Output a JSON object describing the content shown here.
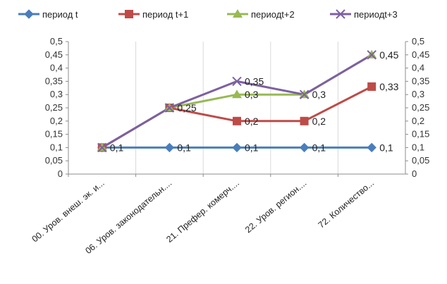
{
  "chart_data": {
    "type": "line",
    "title": "",
    "xlabel": "",
    "ylabel": "",
    "categories": [
      "00. Уров. внеш. эк. и...",
      "06. Уров. законодательн....",
      "21. Префер. комерч....",
      "22. Уров. регион....",
      "72. Количество..."
    ],
    "series": [
      {
        "name": "период t",
        "values": [
          0.1,
          0.1,
          0.1,
          0.1,
          0.1
        ],
        "color": "#4a7ebb",
        "marker": "diamond",
        "labels": [
          "0,1",
          "0,1",
          "0,1",
          "0,1",
          "0,1"
        ]
      },
      {
        "name": "период t+1",
        "values": [
          0.1,
          0.25,
          0.2,
          0.2,
          0.33
        ],
        "color": "#be4b48",
        "marker": "square",
        "labels": [
          "",
          "",
          "0,2",
          "0,2",
          "0,33"
        ]
      },
      {
        "name": "периодt+2",
        "values": [
          0.1,
          0.25,
          0.3,
          0.3,
          0.45
        ],
        "color": "#98b954",
        "marker": "triangle",
        "labels": [
          "",
          "",
          "0,3",
          "",
          ""
        ]
      },
      {
        "name": "периодt+3",
        "values": [
          0.1,
          0.25,
          0.35,
          0.3,
          0.45
        ],
        "color": "#7d60a0",
        "marker": "x",
        "labels": [
          "",
          "0,25",
          "0,35",
          "0,3",
          "0,45"
        ]
      }
    ],
    "ylim": [
      0,
      0.5
    ],
    "yticks": [
      "0",
      "0,05",
      "0,1",
      "0,15",
      "0,2",
      "0,25",
      "0,3",
      "0,35",
      "0,4",
      "0,45",
      "0,5"
    ],
    "secondary_yticks": [
      "0",
      "0,05",
      "0,1",
      "0,15",
      "0,2",
      "0,25",
      "0,3",
      "0,35",
      "0,4",
      "0,45",
      "0,5"
    ],
    "grid": true,
    "legend_position": "top"
  }
}
